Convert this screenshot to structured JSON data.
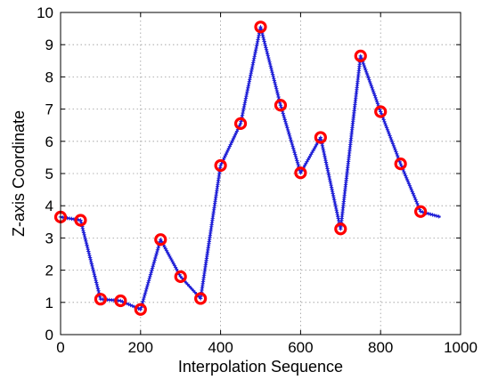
{
  "chart_data": {
    "type": "line",
    "title": "",
    "xlabel": "Interpolation Sequence",
    "ylabel": "Z-axis Coordinate",
    "xlim": [
      0,
      1000
    ],
    "ylim": [
      0,
      10
    ],
    "grid": true,
    "x_ticks": [
      0,
      200,
      400,
      600,
      800,
      1000
    ],
    "y_ticks": [
      0,
      1,
      2,
      3,
      4,
      5,
      6,
      7,
      8,
      9,
      10
    ],
    "series": [
      {
        "marker": "plus",
        "color": "#1f1fd6",
        "x": [
          0,
          50,
          100,
          150,
          200,
          250,
          300,
          350,
          400,
          450,
          500,
          550,
          600,
          650,
          700,
          750,
          800,
          850,
          900,
          950
        ],
        "values": [
          3.65,
          3.55,
          1.1,
          1.05,
          0.78,
          2.95,
          1.8,
          1.12,
          5.25,
          6.55,
          9.55,
          7.12,
          5.02,
          6.12,
          3.28,
          8.65,
          6.92,
          5.3,
          3.82,
          3.65
        ]
      },
      {
        "marker": "circle",
        "color": "#ff0000",
        "x": [
          0,
          50,
          100,
          150,
          200,
          250,
          300,
          350,
          400,
          450,
          500,
          550,
          600,
          650,
          700,
          750,
          800,
          850,
          900
        ],
        "values": [
          3.65,
          3.55,
          1.1,
          1.05,
          0.78,
          2.95,
          1.8,
          1.12,
          5.25,
          6.55,
          9.55,
          7.12,
          5.02,
          6.12,
          3.28,
          8.65,
          6.92,
          5.3,
          3.82
        ]
      }
    ]
  }
}
